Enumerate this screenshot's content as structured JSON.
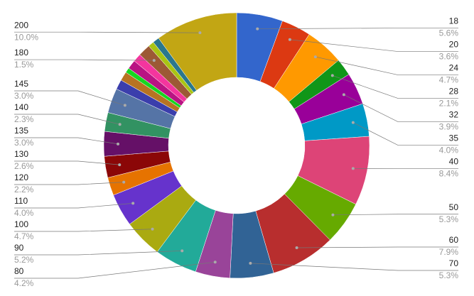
{
  "chart_data": {
    "type": "donut",
    "categories": [
      "18",
      "20",
      "24",
      "28",
      "32",
      "35",
      "40",
      "50",
      "60",
      "70",
      "80",
      "90",
      "100",
      "110",
      "120",
      "130",
      "135",
      "140",
      "145",
      null,
      null,
      null,
      null,
      null,
      "180",
      null,
      null,
      "200"
    ],
    "values": [
      5.6,
      3.6,
      4.7,
      2.1,
      3.9,
      4.0,
      8.4,
      5.3,
      7.9,
      5.3,
      4.2,
      5.2,
      4.7,
      4.0,
      2.2,
      2.6,
      3.0,
      2.3,
      3.0,
      1.2,
      1.1,
      0.6,
      1.1,
      1.0,
      1.5,
      0.7,
      0.8,
      10.0
    ],
    "value_labels": [
      "5.6%",
      "3.6%",
      "4.7%",
      "2.1%",
      "3.9%",
      "4.0%",
      "8.4%",
      "5.3%",
      "7.9%",
      "5.3%",
      "4.2%",
      "5.2%",
      "4.7%",
      "4.0%",
      "2.2%",
      "2.6%",
      "3.0%",
      "2.3%",
      "3.0%",
      null,
      null,
      null,
      null,
      null,
      "1.5%",
      null,
      null,
      "10.0%"
    ],
    "colors": [
      "#3366cc",
      "#dc3912",
      "#ff9900",
      "#109618",
      "#990099",
      "#0099c6",
      "#dd4477",
      "#66aa00",
      "#b82e2e",
      "#316395",
      "#994499",
      "#22aa99",
      "#aaaa11",
      "#6633cc",
      "#e67300",
      "#8b0707",
      "#651067",
      "#329262",
      "#5574a6",
      "#3b3eac",
      "#b77322",
      "#16d620",
      "#b91383",
      "#f4359e",
      "#9c5935",
      "#a9c413",
      "#2a778d",
      "#c2a614"
    ]
  }
}
